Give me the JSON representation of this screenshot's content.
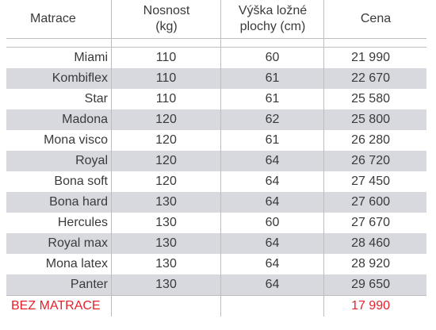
{
  "headers": {
    "mattress": "Matrace",
    "load_line1": "Nosnost",
    "load_line2": "(kg)",
    "height_line1": "Výška ložné",
    "height_line2": "plochy (cm)",
    "price": "Cena"
  },
  "rows": [
    {
      "name": "Miami",
      "load": "110",
      "height": "60",
      "price": "21 990"
    },
    {
      "name": "Kombiflex",
      "load": "110",
      "height": "61",
      "price": "22 670"
    },
    {
      "name": "Star",
      "load": "110",
      "height": "61",
      "price": "25 580"
    },
    {
      "name": "Madona",
      "load": "120",
      "height": "62",
      "price": "25 800"
    },
    {
      "name": "Mona visco",
      "load": "120",
      "height": "61",
      "price": "26 280"
    },
    {
      "name": "Royal",
      "load": "120",
      "height": "64",
      "price": "26 720"
    },
    {
      "name": "Bona soft",
      "load": "120",
      "height": "64",
      "price": "27 450"
    },
    {
      "name": "Bona hard",
      "load": "130",
      "height": "64",
      "price": "27 600"
    },
    {
      "name": "Hercules",
      "load": "130",
      "height": "60",
      "price": "27 670"
    },
    {
      "name": "Royal max",
      "load": "130",
      "height": "64",
      "price": "28 460"
    },
    {
      "name": "Mona latex",
      "load": "130",
      "height": "64",
      "price": "28 920"
    },
    {
      "name": "Panter",
      "load": "130",
      "height": "64",
      "price": "29 650"
    }
  ],
  "no_mattress": {
    "label": "BEZ MATRACE",
    "price": "17 990"
  },
  "colors": {
    "stripe": "#d7d9df",
    "highlight": "#e8202a",
    "text": "#3a3a3a",
    "rule": "#bdbdbd"
  }
}
